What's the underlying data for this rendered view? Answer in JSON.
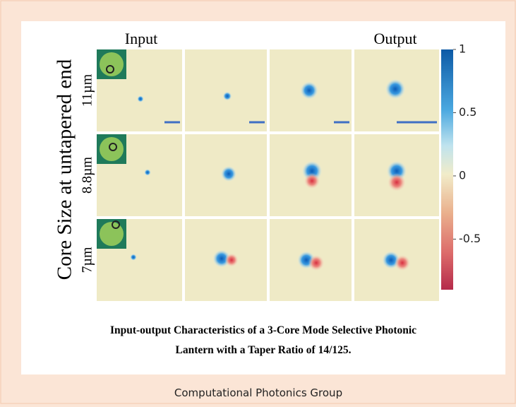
{
  "figure": {
    "column_labels": [
      "Input",
      "Output"
    ],
    "y_label": "Core Size at untapered end",
    "row_labels": [
      "11µm",
      "8.8µm",
      "7µm"
    ],
    "colorbar": {
      "lim": [
        -0.9,
        1
      ],
      "ticks": [
        1,
        0.5,
        0,
        -0.5
      ]
    },
    "caption": [
      "Input-output Characteristics of a 3-Core Mode Selective Photonic",
      "Lantern with a Taper Ratio of 14/125."
    ]
  },
  "footer": "Computational Photonics Group"
}
